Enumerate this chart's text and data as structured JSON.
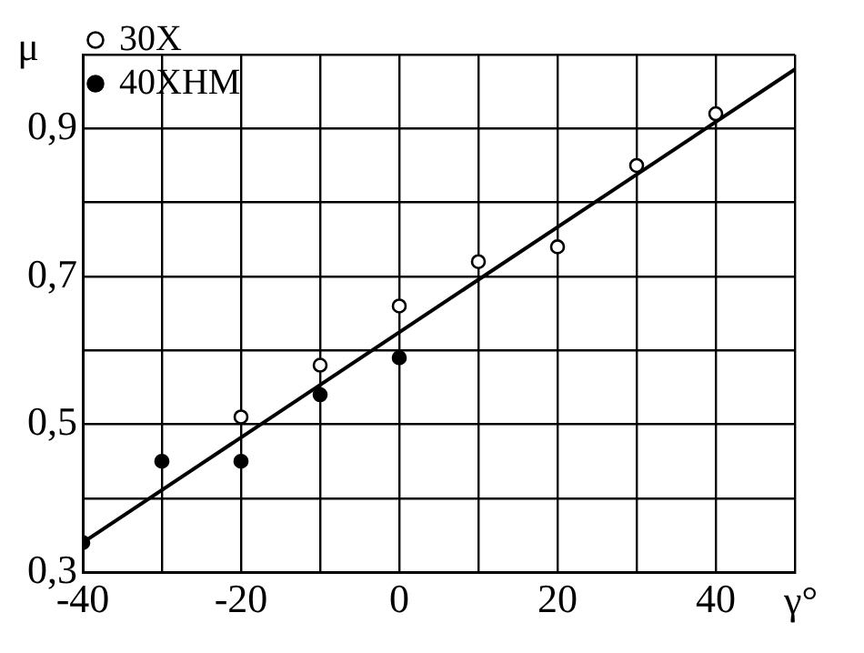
{
  "chart_data": {
    "type": "scatter",
    "xlabel": "γ°",
    "ylabel": "μ",
    "xlim": [
      -40,
      50
    ],
    "ylim": [
      0.3,
      1.0
    ],
    "xticks": [
      -40,
      {
        "value": -30,
        "label": null
      },
      -20,
      {
        "value": -10,
        "label": null
      },
      0,
      {
        "value": 10,
        "label": null
      },
      20,
      {
        "value": 30,
        "label": null
      },
      40,
      {
        "value": 50,
        "label": null
      }
    ],
    "yticks": [
      {
        "value": 0.3,
        "label": "0,3"
      },
      {
        "value": 0.4,
        "label": null
      },
      {
        "value": 0.5,
        "label": "0,5"
      },
      {
        "value": 0.6,
        "label": null
      },
      {
        "value": 0.7,
        "label": "0,7"
      },
      {
        "value": 0.8,
        "label": null
      },
      {
        "value": 0.9,
        "label": "0,9"
      },
      {
        "value": 1.0,
        "label": null
      }
    ],
    "grid": true,
    "legend": "top left",
    "marker": "circle",
    "series": [
      {
        "name": "30Х",
        "color": "#000000",
        "x": [
          -20,
          -10,
          0,
          10,
          20,
          30,
          40
        ],
        "values": [
          0.51,
          0.58,
          0.66,
          0.72,
          0.74,
          0.85,
          0.92
        ]
      },
      {
        "name": "40ХНМ",
        "color": "#000000",
        "x": [
          -40,
          -30,
          -20,
          -10,
          0
        ],
        "values": [
          0.34,
          0.45,
          0.45,
          0.54,
          0.59
        ]
      },
      {
        "type": "line",
        "marker": "none",
        "color": "#000000",
        "x": [
          -40,
          50
        ],
        "values": [
          0.34,
          0.98
        ]
      }
    ]
  }
}
